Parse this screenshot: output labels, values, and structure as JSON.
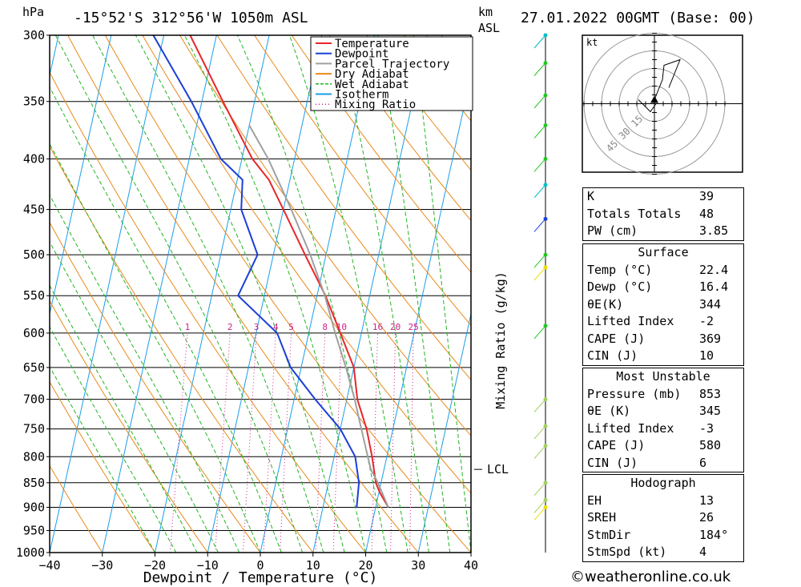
{
  "header": {
    "pressure_unit": "hPa",
    "location": "-15°52'S  312°56'W  1050m  ASL",
    "height_unit_1": "km",
    "height_unit_2": "ASL",
    "datetime": "27.01.2022  00GMT  (Base: 00)"
  },
  "chart_data": {
    "type": "line",
    "subtype": "skew-T log-P sounding",
    "xlabel": "Dewpoint / Temperature (°C)",
    "ylabel": "hPa",
    "right_axis_label": "Mixing Ratio (g/kg)",
    "xlim": [
      -40,
      40
    ],
    "ylim": [
      1000,
      300
    ],
    "y_scale": "log",
    "pressure_ticks": [
      300,
      350,
      400,
      450,
      500,
      550,
      600,
      650,
      700,
      750,
      800,
      850,
      900,
      950,
      1000
    ],
    "temperature_ticks": [
      -40,
      -30,
      -20,
      -10,
      0,
      10,
      20,
      30,
      40
    ],
    "mixing_ratio_labels": [
      "1",
      "2",
      "3",
      "4",
      "5",
      "8",
      "10",
      "16",
      "20",
      "25"
    ],
    "mixing_ratio_label_pressure": 600,
    "lcl_label": "LCL",
    "lcl_pressure": 824,
    "legend": {
      "placement": "top",
      "entries": [
        {
          "name": "Temperature",
          "color": "#e8262a",
          "style": "solid"
        },
        {
          "name": "Dewpoint",
          "color": "#1c3fd6",
          "style": "solid"
        },
        {
          "name": "Parcel Trajectory",
          "color": "#a0a0a0",
          "style": "solid"
        },
        {
          "name": "Dry Adiabat",
          "color": "#e88a1a",
          "style": "solid"
        },
        {
          "name": "Wet Adiabat",
          "color": "#22b422",
          "style": "dashed"
        },
        {
          "name": "Isotherm",
          "color": "#1a9ee8",
          "style": "solid"
        },
        {
          "name": "Mixing Ratio",
          "color": "#d0208a",
          "style": "dotted"
        }
      ]
    },
    "series": [
      {
        "name": "Temperature",
        "points": [
          [
            900,
            22.4
          ],
          [
            870,
            20.2
          ],
          [
            850,
            19.0
          ],
          [
            800,
            17.2
          ],
          [
            750,
            15.0
          ],
          [
            700,
            12.0
          ],
          [
            650,
            10.0
          ],
          [
            600,
            6.0
          ],
          [
            550,
            1.6
          ],
          [
            500,
            -4.0
          ],
          [
            450,
            -10.0
          ],
          [
            420,
            -14.0
          ],
          [
            400,
            -18.0
          ],
          [
            350,
            -26.0
          ],
          [
            300,
            -35.0
          ]
        ]
      },
      {
        "name": "Dewpoint",
        "points": [
          [
            900,
            16.4
          ],
          [
            850,
            15.8
          ],
          [
            800,
            14.0
          ],
          [
            750,
            10.0
          ],
          [
            700,
            4.0
          ],
          [
            650,
            -2.0
          ],
          [
            600,
            -6.0
          ],
          [
            550,
            -15.0
          ],
          [
            500,
            -13.0
          ],
          [
            450,
            -18.0
          ],
          [
            420,
            -19.0
          ],
          [
            400,
            -24.0
          ],
          [
            350,
            -32.0
          ],
          [
            300,
            -42.0
          ]
        ]
      },
      {
        "name": "Parcel Trajectory",
        "points": [
          [
            900,
            22.4
          ],
          [
            850,
            19.4
          ],
          [
            824,
            17.5
          ],
          [
            800,
            16.4
          ],
          [
            750,
            14.0
          ],
          [
            700,
            11.5
          ],
          [
            650,
            8.5
          ],
          [
            600,
            5.0
          ],
          [
            550,
            1.5
          ],
          [
            500,
            -3.0
          ],
          [
            450,
            -8.5
          ],
          [
            400,
            -15.0
          ],
          [
            370,
            -20.0
          ]
        ]
      }
    ]
  },
  "wind_profile": {
    "colors": [
      "#00c0c8",
      "#20c820",
      "#1c3fd6",
      "#e8e000",
      "#a0d060"
    ],
    "markers": [
      {
        "pressure": 300,
        "color": "#00c0c8"
      },
      {
        "pressure": 320,
        "color": "#20c820"
      },
      {
        "pressure": 345,
        "color": "#20c820"
      },
      {
        "pressure": 370,
        "color": "#20c820"
      },
      {
        "pressure": 400,
        "color": "#20c820"
      },
      {
        "pressure": 425,
        "color": "#00c0c8"
      },
      {
        "pressure": 460,
        "color": "#1c3fd6"
      },
      {
        "pressure": 500,
        "color": "#20c820"
      },
      {
        "pressure": 515,
        "color": "#e8e000"
      },
      {
        "pressure": 590,
        "color": "#20c820"
      },
      {
        "pressure": 700,
        "color": "#a0d060"
      },
      {
        "pressure": 745,
        "color": "#a0d060"
      },
      {
        "pressure": 780,
        "color": "#a0d060"
      },
      {
        "pressure": 850,
        "color": "#a0d060"
      },
      {
        "pressure": 885,
        "color": "#a0d060"
      },
      {
        "pressure": 900,
        "color": "#e8e000"
      }
    ]
  },
  "hodograph": {
    "unit": "kt",
    "ring_labels": [
      "15",
      "30",
      "45"
    ]
  },
  "indices": {
    "general": [
      {
        "label": "K",
        "value": "39"
      },
      {
        "label": "Totals Totals",
        "value": "48"
      },
      {
        "label": "PW (cm)",
        "value": "3.85"
      }
    ],
    "surface_title": "Surface",
    "surface": [
      {
        "label": "Temp (°C)",
        "value": "22.4"
      },
      {
        "label": "Dewp (°C)",
        "value": "16.4"
      },
      {
        "label": "θE(K)",
        "value": "344"
      },
      {
        "label": "Lifted Index",
        "value": "-2"
      },
      {
        "label": "CAPE (J)",
        "value": "369"
      },
      {
        "label": "CIN (J)",
        "value": "10"
      }
    ],
    "unstable_title": "Most Unstable",
    "unstable": [
      {
        "label": "Pressure (mb)",
        "value": "853"
      },
      {
        "label": "θE (K)",
        "value": "345"
      },
      {
        "label": "Lifted Index",
        "value": "-3"
      },
      {
        "label": "CAPE (J)",
        "value": "580"
      },
      {
        "label": "CIN (J)",
        "value": "6"
      }
    ],
    "hodograph_title": "Hodograph",
    "hodograph": [
      {
        "label": "EH",
        "value": "13"
      },
      {
        "label": "SREH",
        "value": "26"
      },
      {
        "label": "StmDir",
        "value": "184°"
      },
      {
        "label": "StmSpd (kt)",
        "value": "4"
      }
    ]
  },
  "credit": "©weatheronline.co.uk"
}
